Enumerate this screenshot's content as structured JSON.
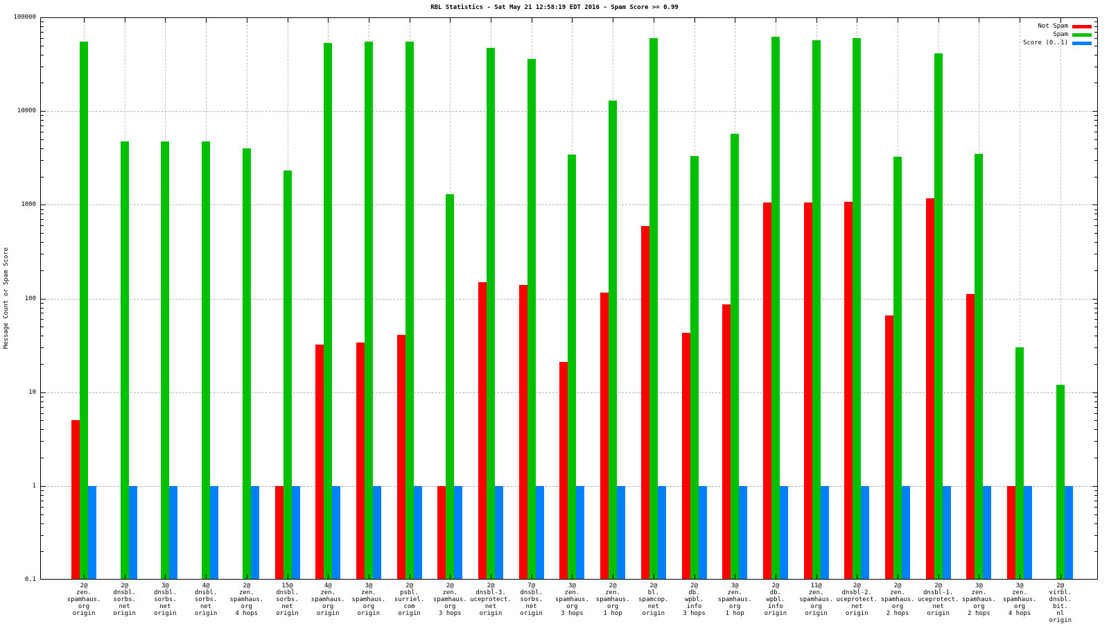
{
  "title": "RBL Statistics - Sat May 21 12:58:19 EDT 2016 - Spam Score >= 0.99",
  "legend": [
    {
      "label": "Not Spam",
      "color": "#ff0000"
    },
    {
      "label": "Spam",
      "color": "#00c000"
    },
    {
      "label": "Score (0..1)",
      "color": "#0080ff"
    }
  ],
  "colors": {
    "not_spam": "#ff0000",
    "spam": "#00c000",
    "score": "#0080ff",
    "grid": "#b3b3b3",
    "axis": "#000000",
    "background": "#ffffff"
  },
  "chart_data": {
    "type": "bar",
    "title": "RBL Statistics - Sat May 21 12:58:19 EDT 2016 - Spam Score >= 0.99",
    "xlabel": "",
    "ylabel": "Message Count or Spam Score",
    "yscale": "log",
    "ylim": [
      0.1,
      100000
    ],
    "grid": true,
    "legend_position": "top-right",
    "yticks": [
      {
        "value": 100000,
        "label": "100000"
      },
      {
        "value": 10000,
        "label": "10000"
      },
      {
        "value": 1000,
        "label": "1000"
      },
      {
        "value": 100,
        "label": "100"
      },
      {
        "value": 10,
        "label": "10"
      },
      {
        "value": 1,
        "label": "1"
      },
      {
        "value": 0.1,
        "label": "0.1"
      }
    ],
    "categories": [
      [
        "2@",
        "zen.",
        "spamhaus.",
        "org",
        "origin"
      ],
      [
        "2@",
        "dnsbl.",
        "sorbs.",
        "net",
        "origin"
      ],
      [
        "3@",
        "dnsbl.",
        "sorbs.",
        "net",
        "origin"
      ],
      [
        "4@",
        "dnsbl.",
        "sorbs.",
        "net",
        "origin"
      ],
      [
        "2@",
        "zen.",
        "spamhaus.",
        "org",
        "4 hops"
      ],
      [
        "15@",
        "dnsbl.",
        "sorbs.",
        "net",
        "origin"
      ],
      [
        "4@",
        "zen.",
        "spamhaus.",
        "org",
        "origin"
      ],
      [
        "3@",
        "zen.",
        "spamhaus.",
        "org",
        "origin"
      ],
      [
        "2@",
        "psbl.",
        "surriel.",
        "com",
        "origin"
      ],
      [
        "2@",
        "zen.",
        "spamhaus.",
        "org",
        "3 hops"
      ],
      [
        "2@",
        "dnsbl-3.",
        "uceprotect.",
        "net",
        "origin"
      ],
      [
        "7@",
        "dnsbl.",
        "sorbs.",
        "net",
        "origin"
      ],
      [
        "3@",
        "zen.",
        "spamhaus.",
        "org",
        "3 hops"
      ],
      [
        "2@",
        "zen.",
        "spamhaus.",
        "org",
        "1 hop"
      ],
      [
        "2@",
        "bl.",
        "spamcop.",
        "net",
        "origin"
      ],
      [
        "2@",
        "db.",
        "wpbl.",
        "info",
        "3 hops"
      ],
      [
        "3@",
        "zen.",
        "spamhaus.",
        "org",
        "1 hop"
      ],
      [
        "2@",
        "db.",
        "wpbl.",
        "info",
        "origin"
      ],
      [
        "11@",
        "zen.",
        "spamhaus.",
        "org",
        "origin"
      ],
      [
        "2@",
        "dnsbl-2.",
        "uceprotect.",
        "net",
        "origin"
      ],
      [
        "2@",
        "zen.",
        "spamhaus.",
        "org",
        "2 hops"
      ],
      [
        "2@",
        "dnsbl-1.",
        "uceprotect.",
        "net",
        "origin"
      ],
      [
        "3@",
        "zen.",
        "spamhaus.",
        "org",
        "2 hops"
      ],
      [
        "3@",
        "zen.",
        "spamhaus.",
        "org",
        "4 hops"
      ],
      [
        "2@",
        "virbl.",
        "dnsbl.",
        "bit.",
        "nl",
        "origin"
      ]
    ],
    "series": [
      {
        "name": "Not Spam",
        "color": "#ff0000",
        "values": [
          5,
          null,
          null,
          null,
          null,
          1,
          32,
          34,
          41,
          1,
          150,
          140,
          21,
          115,
          590,
          43,
          87,
          1050,
          1050,
          1070,
          66,
          1170,
          112,
          1,
          null
        ]
      },
      {
        "name": "Spam",
        "color": "#00c000",
        "values": [
          55000,
          4700,
          4700,
          4700,
          4000,
          2300,
          53000,
          55000,
          55000,
          1300,
          47000,
          36000,
          3400,
          13000,
          60000,
          3300,
          5700,
          62000,
          57000,
          60000,
          3250,
          41000,
          3500,
          30,
          12
        ]
      },
      {
        "name": "Score (0..1)",
        "color": "#0080ff",
        "values": [
          1,
          1,
          1,
          1,
          1,
          1,
          1,
          1,
          1,
          1,
          1,
          1,
          1,
          1,
          1,
          1,
          1,
          1,
          1,
          1,
          1,
          1,
          1,
          1,
          1
        ]
      }
    ]
  }
}
